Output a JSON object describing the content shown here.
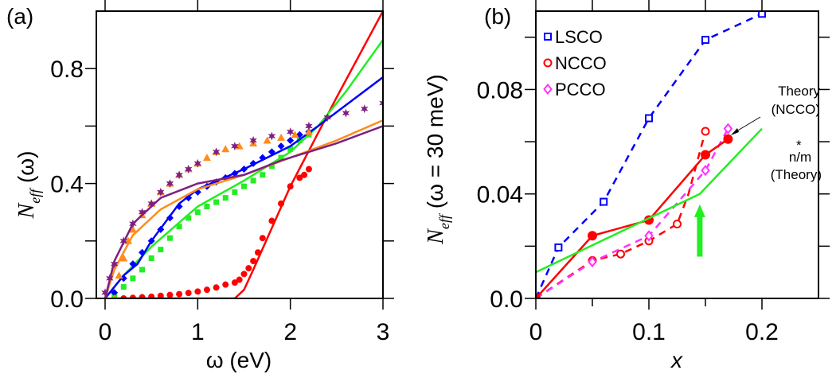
{
  "chart_data": [
    {
      "type": "scatter",
      "panel_label": "(a)",
      "xlabel": "ω (eV)",
      "ylabel_main": "N",
      "ylabel_sub": "eff",
      "ylabel_rest": " (ω)",
      "xlim": [
        -0.1,
        3.0
      ],
      "ylim": [
        0.0,
        1.0
      ],
      "xticks": [
        0,
        1,
        2,
        3
      ],
      "xtick_labels": [
        "0",
        "1",
        "2",
        "3"
      ],
      "yticks": [
        0.0,
        0.2,
        0.4,
        0.6,
        0.8
      ],
      "ytick_labels": [
        "0.0",
        "",
        "0.4",
        "",
        "0.8"
      ],
      "series": [
        {
          "name": "red-points",
          "color": "#ff0000",
          "marker": "circle",
          "x": [
            0.2,
            0.3,
            0.4,
            0.5,
            0.6,
            0.7,
            0.8,
            0.9,
            1.0,
            1.1,
            1.2,
            1.3,
            1.4,
            1.45,
            1.5,
            1.55,
            1.6,
            1.65,
            1.7,
            1.8,
            1.9,
            2.0,
            2.1,
            2.15,
            2.2
          ],
          "y": [
            0.0,
            0.002,
            0.004,
            0.006,
            0.009,
            0.012,
            0.015,
            0.019,
            0.024,
            0.03,
            0.038,
            0.048,
            0.055,
            0.065,
            0.085,
            0.105,
            0.13,
            0.16,
            0.21,
            0.27,
            0.33,
            0.39,
            0.42,
            0.43,
            0.45
          ]
        },
        {
          "name": "red-line",
          "color": "#ff0000",
          "marker": "line",
          "x": [
            0.1,
            1.4,
            1.5,
            1.6,
            2.0,
            2.5,
            3.0
          ],
          "y": [
            0.0,
            0.0,
            0.03,
            0.1,
            0.39,
            0.7,
            1.0
          ]
        },
        {
          "name": "green-points",
          "color": "#22ee22",
          "marker": "square",
          "x": [
            0.1,
            0.2,
            0.3,
            0.4,
            0.5,
            0.6,
            0.7,
            0.8,
            0.9,
            1.0,
            1.1,
            1.2,
            1.3,
            1.4,
            1.5,
            1.6,
            1.7,
            1.8,
            1.9,
            2.0,
            2.1,
            2.2
          ],
          "y": [
            0.01,
            0.04,
            0.07,
            0.1,
            0.14,
            0.17,
            0.21,
            0.25,
            0.28,
            0.3,
            0.32,
            0.335,
            0.35,
            0.37,
            0.39,
            0.41,
            0.43,
            0.46,
            0.49,
            0.52,
            0.55,
            0.57
          ]
        },
        {
          "name": "green-line",
          "color": "#22ee22",
          "marker": "line",
          "x": [
            0.0,
            0.2,
            0.5,
            1.0,
            1.5,
            2.0,
            2.3,
            2.6,
            3.0
          ],
          "y": [
            0.0,
            0.08,
            0.18,
            0.32,
            0.41,
            0.51,
            0.6,
            0.72,
            0.9
          ]
        },
        {
          "name": "blue-points",
          "color": "#0000ff",
          "marker": "diamond",
          "x": [
            0.1,
            0.2,
            0.3,
            0.4,
            0.5,
            0.6,
            0.7,
            0.8,
            0.9,
            1.0,
            1.1,
            1.2,
            1.3,
            1.4,
            1.5,
            1.6,
            1.7,
            1.8,
            1.9,
            2.0,
            2.1,
            2.2
          ],
          "y": [
            0.02,
            0.07,
            0.12,
            0.16,
            0.2,
            0.24,
            0.28,
            0.32,
            0.35,
            0.37,
            0.39,
            0.405,
            0.42,
            0.435,
            0.45,
            0.47,
            0.49,
            0.51,
            0.53,
            0.55,
            0.57,
            0.58
          ]
        },
        {
          "name": "blue-line",
          "color": "#0000ff",
          "marker": "line",
          "x": [
            0.0,
            0.2,
            0.35,
            0.5,
            0.8,
            1.0,
            1.5,
            2.0,
            2.3,
            3.0
          ],
          "y": [
            0.0,
            0.08,
            0.12,
            0.2,
            0.33,
            0.38,
            0.45,
            0.53,
            0.6,
            0.77
          ]
        },
        {
          "name": "orange-points",
          "color": "#ff8c1a",
          "marker": "triangle",
          "x": [
            0.1,
            0.15,
            0.2,
            0.25,
            0.3,
            0.4,
            0.5,
            0.6,
            0.7,
            0.8,
            0.9,
            1.0,
            1.1,
            1.2,
            1.3,
            1.45,
            1.6,
            1.75,
            1.9,
            2.05,
            2.2
          ],
          "y": [
            0.0,
            0.08,
            0.14,
            0.2,
            0.24,
            0.29,
            0.33,
            0.37,
            0.4,
            0.43,
            0.45,
            0.47,
            0.49,
            0.51,
            0.52,
            0.53,
            0.54,
            0.55,
            0.56,
            0.57,
            0.58
          ]
        },
        {
          "name": "orange-line",
          "color": "#ff8c1a",
          "marker": "line",
          "x": [
            0.0,
            0.1,
            0.3,
            0.6,
            1.0,
            1.5,
            2.0,
            2.5,
            3.0
          ],
          "y": [
            0.0,
            0.1,
            0.22,
            0.31,
            0.38,
            0.43,
            0.49,
            0.55,
            0.62
          ]
        },
        {
          "name": "purple-points",
          "color": "#7f1f80",
          "marker": "star",
          "x": [
            0.0,
            0.05,
            0.1,
            0.2,
            0.3,
            0.4,
            0.5,
            0.6,
            0.7,
            0.8,
            0.9,
            1.0,
            1.2,
            1.4,
            1.6,
            1.8,
            2.0,
            2.2,
            2.4,
            2.6,
            2.8,
            3.0
          ],
          "y": [
            0.02,
            0.07,
            0.12,
            0.2,
            0.26,
            0.3,
            0.33,
            0.37,
            0.4,
            0.43,
            0.45,
            0.47,
            0.51,
            0.53,
            0.55,
            0.565,
            0.58,
            0.6,
            0.63,
            0.645,
            0.66,
            0.68
          ]
        },
        {
          "name": "purple-line",
          "color": "#7f1f80",
          "marker": "line",
          "x": [
            0.0,
            0.1,
            0.3,
            0.6,
            1.0,
            1.5,
            1.9,
            2.5,
            3.0
          ],
          "y": [
            0.0,
            0.13,
            0.26,
            0.35,
            0.4,
            0.43,
            0.48,
            0.54,
            0.6
          ]
        }
      ]
    },
    {
      "type": "line",
      "panel_label": "(b)",
      "xlabel": "x",
      "ylabel_main": "N",
      "ylabel_sub": "eff",
      "ylabel_rest": " (ω = 30 meV)",
      "xlim": [
        0.0,
        0.25
      ],
      "ylim": [
        0.0,
        0.11
      ],
      "xticks": [
        0,
        0.05,
        0.1,
        0.15,
        0.2
      ],
      "xtick_labels": [
        "0",
        "",
        "0.1",
        "",
        "0.2"
      ],
      "yticks": [
        0.0,
        0.02,
        0.04,
        0.06,
        0.08,
        0.1
      ],
      "ytick_labels": [
        "0.0",
        "",
        "0.04",
        "",
        "0.08",
        ""
      ],
      "legend": [
        "LSCO",
        "NCCO",
        "PCCO"
      ],
      "legend_placement": "top-left",
      "series": [
        {
          "name": "LSCO",
          "color": "#0000ff",
          "marker": "open-square",
          "dash": true,
          "x": [
            0,
            0.02,
            0.06,
            0.1,
            0.15,
            0.2
          ],
          "y": [
            0,
            0.0195,
            0.037,
            0.069,
            0.099,
            0.109
          ]
        },
        {
          "name": "NCCO",
          "color": "#ff0000",
          "marker": "open-circle",
          "dash": true,
          "x": [
            0,
            0.05,
            0.075,
            0.1,
            0.125,
            0.135,
            0.15
          ],
          "y": [
            0,
            0.0145,
            0.017,
            0.022,
            0.0285,
            0.04,
            0.064
          ],
          "marker_skip": [
            5
          ]
        },
        {
          "name": "PCCO",
          "color": "#ff33ff",
          "marker": "open-diamond",
          "dash": true,
          "x": [
            0,
            0.05,
            0.1,
            0.15,
            0.17
          ],
          "y": [
            0,
            0.014,
            0.024,
            0.049,
            0.065
          ]
        },
        {
          "name": "Theory (NCCO)",
          "color": "#ff0000",
          "marker": "filled-circle",
          "dash": false,
          "x": [
            0,
            0.05,
            0.1,
            0.15,
            0.17
          ],
          "y": [
            0,
            0.024,
            0.03,
            0.055,
            0.061
          ]
        },
        {
          "name": "n/m* (Theory)",
          "color": "#22ee22",
          "marker": "none",
          "dash": false,
          "x": [
            0,
            0.145,
            0.2
          ],
          "y": [
            0.01,
            0.04,
            0.065
          ]
        }
      ],
      "annotations": {
        "theory_ncco_line1": "Theory",
        "theory_ncco_line2": "(NCCO)",
        "nm_line1": "n/m",
        "nm_star": "*",
        "nm_line2": "(Theory)",
        "arrow_x": 0.145,
        "arrow_y": [
          0.016,
          0.036
        ],
        "arrow_color": "#22ee22"
      }
    }
  ]
}
